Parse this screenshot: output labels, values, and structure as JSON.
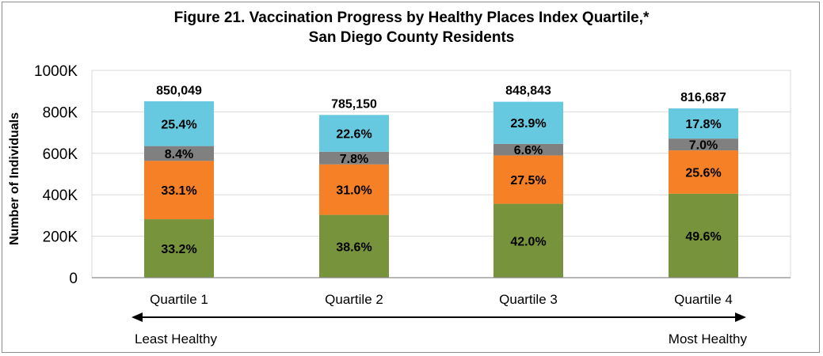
{
  "chart_data": {
    "type": "bar",
    "stacked": true,
    "title_line1": "Figure 21. Vaccination Progress by Healthy Places Index Quartile,*",
    "title_line2": "San Diego County Residents",
    "ylabel": "Number of Individuals",
    "ylim": [
      0,
      1000000
    ],
    "yticks": [
      0,
      200000,
      400000,
      600000,
      800000,
      1000000
    ],
    "ytick_labels": [
      "0",
      "200K",
      "400K",
      "600K",
      "800K",
      "1000K"
    ],
    "grid": true,
    "categories": [
      "Quartile 1",
      "Quartile 2",
      "Quartile 3",
      "Quartile 4"
    ],
    "totals": [
      850049,
      785150,
      848843,
      816687
    ],
    "total_labels": [
      "850,049",
      "785,150",
      "848,843",
      "816,687"
    ],
    "series": [
      {
        "color": "#77933c",
        "percents": [
          33.2,
          38.6,
          42.0,
          49.6
        ],
        "labels": [
          "33.2%",
          "38.6%",
          "42.0%",
          "49.6%"
        ]
      },
      {
        "color": "#f58025",
        "percents": [
          33.1,
          31.0,
          27.5,
          25.6
        ],
        "labels": [
          "33.1%",
          "31.0%",
          "27.5%",
          "25.6%"
        ]
      },
      {
        "color": "#808080",
        "percents": [
          8.4,
          7.8,
          6.6,
          7.0
        ],
        "labels": [
          "8.4%",
          "7.8%",
          "6.6%",
          "7.0%"
        ]
      },
      {
        "color": "#66c9e0",
        "percents": [
          25.4,
          22.6,
          23.9,
          17.8
        ],
        "labels": [
          "25.4%",
          "22.6%",
          "23.9%",
          "17.8%"
        ]
      }
    ],
    "arrow_left_label": "Least Healthy",
    "arrow_right_label": "Most Healthy",
    "gridline_color": "#d9d9d9",
    "axis_color": "#8c8c8c"
  }
}
